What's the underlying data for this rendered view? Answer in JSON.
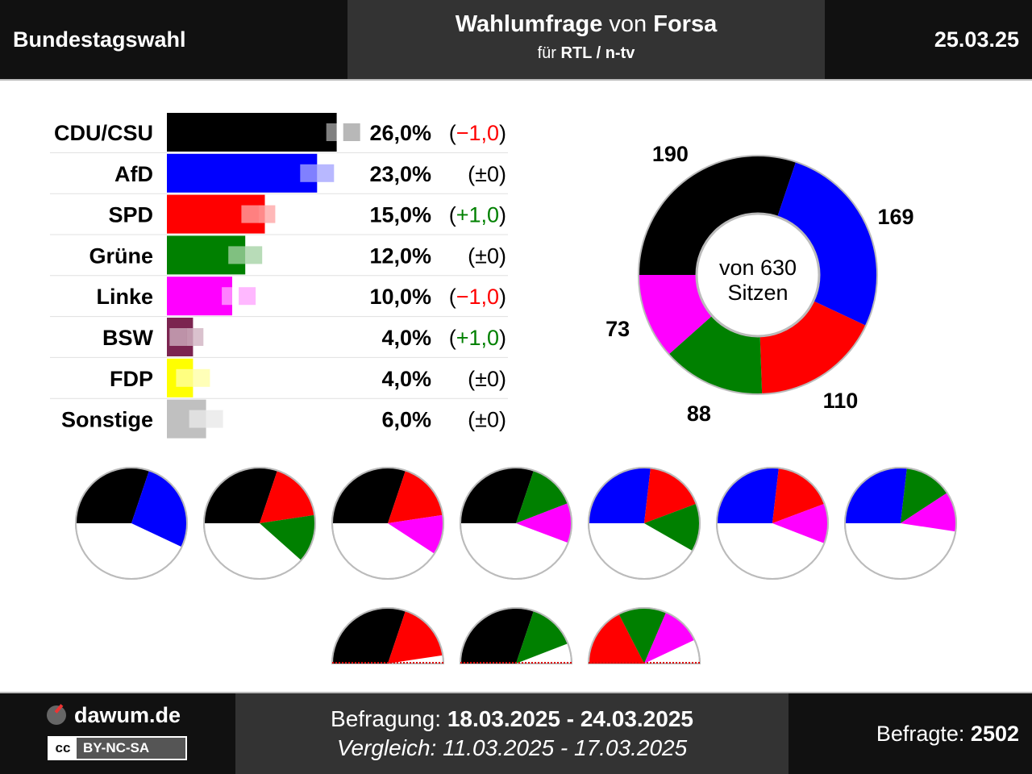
{
  "header": {
    "title": "Bundestagswahl",
    "poll_word": "Wahlumfrage",
    "von": "von",
    "institute": "Forsa",
    "fuer": "für",
    "client": "RTL / n-tv",
    "date": "25.03.25"
  },
  "chart_data": [
    {
      "type": "bar",
      "categories": [
        "CDU/CSU",
        "AfD",
        "SPD",
        "Grüne",
        "Linke",
        "BSW",
        "FDP",
        "Sonstige"
      ],
      "values": [
        26.0,
        23.0,
        15.0,
        12.0,
        10.0,
        4.0,
        4.0,
        6.0
      ],
      "previous_values": [
        27.0,
        23.0,
        14.0,
        12.0,
        11.0,
        3.0,
        4.0,
        6.0
      ],
      "value_labels": [
        "26,0%",
        "23,0%",
        "15,0%",
        "12,0%",
        "10,0%",
        "4,0%",
        "4,0%",
        "6,0%"
      ],
      "change_labels": [
        "(−1,0)",
        "(±0)",
        "(+1,0)",
        "(±0)",
        "(−1,0)",
        "(+1,0)",
        "(±0)",
        "(±0)"
      ],
      "colors": [
        "#000000",
        "#0000ff",
        "#ff0000",
        "#008000",
        "#ff00ff",
        "#7b2450",
        "#ffff00",
        "#c0c0c0"
      ],
      "change_colors": {
        "negative": "#ff0000",
        "positive": "#008000",
        "neutral": "#000000"
      }
    },
    {
      "type": "pie",
      "title": "von 630 Sitzen",
      "total": 630,
      "center_line1": "von 630",
      "center_line2": "Sitzen",
      "categories": [
        "CDU/CSU",
        "AfD",
        "SPD",
        "Grüne",
        "Linke"
      ],
      "values": [
        190,
        169,
        110,
        88,
        73
      ],
      "value_labels": [
        "190",
        "169",
        "110",
        "88",
        "73"
      ],
      "colors": [
        "#000000",
        "#0000ff",
        "#ff0000",
        "#008000",
        "#ff00ff"
      ]
    }
  ],
  "coalitions": [
    {
      "parties": [
        "CDU/CSU",
        "AfD"
      ],
      "seats": [
        190,
        169
      ],
      "colors": [
        "#000000",
        "#0000ff"
      ],
      "majority": true
    },
    {
      "parties": [
        "CDU/CSU",
        "SPD",
        "Grüne"
      ],
      "seats": [
        190,
        110,
        88
      ],
      "colors": [
        "#000000",
        "#ff0000",
        "#008000"
      ],
      "majority": true
    },
    {
      "parties": [
        "CDU/CSU",
        "SPD",
        "Linke"
      ],
      "seats": [
        190,
        110,
        73
      ],
      "colors": [
        "#000000",
        "#ff0000",
        "#ff00ff"
      ],
      "majority": true
    },
    {
      "parties": [
        "CDU/CSU",
        "Grüne",
        "Linke"
      ],
      "seats": [
        190,
        88,
        73
      ],
      "colors": [
        "#000000",
        "#008000",
        "#ff00ff"
      ],
      "majority": true
    },
    {
      "parties": [
        "AfD",
        "SPD",
        "Grüne"
      ],
      "seats": [
        169,
        110,
        88
      ],
      "colors": [
        "#0000ff",
        "#ff0000",
        "#008000"
      ],
      "majority": true
    },
    {
      "parties": [
        "AfD",
        "SPD",
        "Linke"
      ],
      "seats": [
        169,
        110,
        73
      ],
      "colors": [
        "#0000ff",
        "#ff0000",
        "#ff00ff"
      ],
      "majority": true
    },
    {
      "parties": [
        "AfD",
        "Grüne",
        "Linke"
      ],
      "seats": [
        169,
        88,
        73
      ],
      "colors": [
        "#0000ff",
        "#008000",
        "#ff00ff"
      ],
      "majority": true
    },
    {
      "parties": [
        "CDU/CSU",
        "SPD"
      ],
      "seats": [
        190,
        110
      ],
      "colors": [
        "#000000",
        "#ff0000"
      ],
      "majority": false
    },
    {
      "parties": [
        "CDU/CSU",
        "Grüne"
      ],
      "seats": [
        190,
        88
      ],
      "colors": [
        "#000000",
        "#008000"
      ],
      "majority": false
    },
    {
      "parties": [
        "SPD",
        "Grüne",
        "Linke"
      ],
      "seats": [
        110,
        88,
        73
      ],
      "colors": [
        "#ff0000",
        "#008000",
        "#ff00ff"
      ],
      "majority": false
    }
  ],
  "footer": {
    "brand": "dawum.de",
    "license_cc": "cc",
    "license": "BY-NC-SA",
    "survey_label": "Befragung:",
    "survey_range": "18.03.2025 - 24.03.2025",
    "compare_label": "Vergleich:",
    "compare_range": "11.03.2025 - 17.03.2025",
    "respondents_label": "Befragte:",
    "respondents": "2502"
  }
}
